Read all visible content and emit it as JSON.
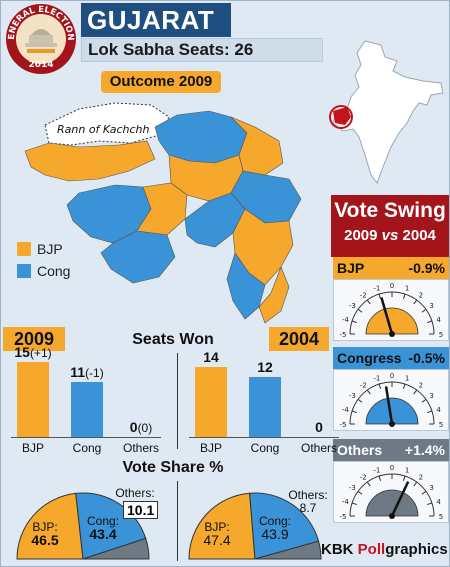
{
  "header": {
    "logo_top": "GENERAL ELECTIONS",
    "logo_bottom": "2014",
    "state": "GUJARAT",
    "seats_text": "Lok Sabha Seats: 26"
  },
  "map": {
    "outcome_label": "Outcome 2009",
    "region_label": "Rann of Kachchh",
    "legend": [
      {
        "name": "BJP",
        "color": "#f5a82b"
      },
      {
        "name": "Cong",
        "color": "#3a93d6"
      }
    ]
  },
  "swing": {
    "title": "Vote Swing",
    "subtitle_a": "2009",
    "subtitle_vs": "vs",
    "subtitle_b": "2004",
    "scale_ticks": [
      "-5",
      "-4",
      "-3",
      "-2",
      "-1",
      "0",
      "1",
      "2",
      "3",
      "4",
      "5"
    ],
    "rows": [
      {
        "name": "BJP",
        "value_text": "-0.9%",
        "value": -0.9,
        "color": "#f5a82b"
      },
      {
        "name": "Congress",
        "value_text": "-0.5%",
        "value": -0.5,
        "color": "#3a93d6"
      },
      {
        "name": "Others",
        "value_text": "+1.4%",
        "value": 1.4,
        "color": "#6d7a86"
      }
    ]
  },
  "sections": {
    "seats_title": "Seats Won",
    "vote_title": "Vote Share %",
    "year_left": "2009",
    "year_right": "2004"
  },
  "credit": {
    "brand": "KBK",
    "poll": "Poll",
    "graphics": "graphics"
  },
  "chart_data": [
    {
      "type": "bar",
      "title": "Seats Won",
      "year": "2009",
      "categories": [
        "BJP",
        "Cong",
        "Others"
      ],
      "values": [
        15,
        11,
        0
      ],
      "change_text": [
        "(+1)",
        "(-1)",
        "(0)"
      ],
      "colors": [
        "#f5a82b",
        "#3a93d6",
        "#6d7a86"
      ],
      "ylim": [
        0,
        16
      ]
    },
    {
      "type": "bar",
      "title": "Seats Won",
      "year": "2004",
      "categories": [
        "BJP",
        "Cong",
        "Others"
      ],
      "values": [
        14,
        12,
        0
      ],
      "colors": [
        "#f5a82b",
        "#3a93d6",
        "#6d7a86"
      ],
      "ylim": [
        0,
        16
      ]
    },
    {
      "type": "pie",
      "title": "Vote Share %",
      "year": "2009",
      "labels": [
        "BJP:",
        "Cong:",
        "Others:"
      ],
      "values": [
        46.5,
        43.4,
        10.1
      ],
      "colors": [
        "#f5a82b",
        "#3a93d6",
        "#6d7a86"
      ]
    },
    {
      "type": "pie",
      "title": "Vote Share %",
      "year": "2004",
      "labels": [
        "BJP:",
        "Cong:",
        "Others:"
      ],
      "values": [
        47.4,
        43.9,
        8.7
      ],
      "colors": [
        "#f5a82b",
        "#3a93d6",
        "#6d7a86"
      ]
    }
  ]
}
